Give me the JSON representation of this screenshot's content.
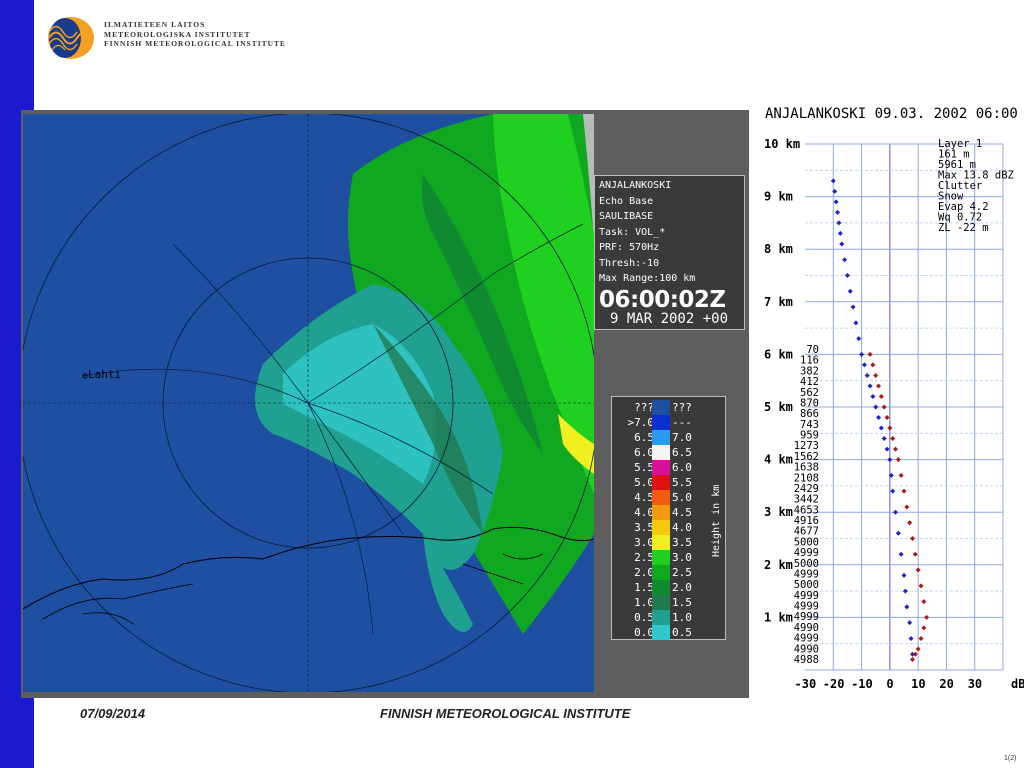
{
  "header": {
    "org_lines": [
      "ILMATIETEEN LAITOS",
      "METEOROLOGISKA INSTITUTET",
      "FINNISH METEOROLOGICAL INSTITUTE"
    ]
  },
  "radar": {
    "place_label": "Lahti",
    "info": {
      "station": "ANJALANKOSKI",
      "product": "Echo Base",
      "product_code": "SAULIBASE",
      "task": "Task: VOL_*",
      "prf": "PRF: 570Hz",
      "thresh": "Thresh:-10",
      "max_range": "Max Range:100 km",
      "time": "06:00:02Z",
      "date": "9 MAR 2002 +00"
    },
    "legend": {
      "axis_label": "Height in km",
      "rows": [
        {
          "left": "???",
          "right": "???",
          "color": "#1e4fa0"
        },
        {
          "left": ">7.0",
          "right": "---",
          "color": "#0a2fd0"
        },
        {
          "left": "6.5",
          "right": "7.0",
          "color": "#2a9bf0"
        },
        {
          "left": "6.0",
          "right": "6.5",
          "color": "#f4f4f4"
        },
        {
          "left": "5.5",
          "right": "6.0",
          "color": "#d8109a"
        },
        {
          "left": "5.0",
          "right": "5.5",
          "color": "#e01010"
        },
        {
          "left": "4.5",
          "right": "5.0",
          "color": "#f25a10"
        },
        {
          "left": "4.0",
          "right": "4.5",
          "color": "#f59a10"
        },
        {
          "left": "3.5",
          "right": "4.0",
          "color": "#f4c810"
        },
        {
          "left": "3.0",
          "right": "3.5",
          "color": "#f0f020"
        },
        {
          "left": "2.5",
          "right": "3.0",
          "color": "#20d020"
        },
        {
          "left": "2.0",
          "right": "2.5",
          "color": "#10a820"
        },
        {
          "left": "1.5",
          "right": "2.0",
          "color": "#108a30"
        },
        {
          "left": "1.0",
          "right": "1.5",
          "color": "#207a50"
        },
        {
          "left": "0.5",
          "right": "1.0",
          "color": "#20a090"
        },
        {
          "left": "0.0",
          "right": "0.5",
          "color": "#30c8c8"
        }
      ]
    }
  },
  "profile": {
    "title": "ANJALANKOSKI 09.03. 2002 06:00",
    "info_lines": [
      "Layer 1",
      "161 m",
      "5961 m",
      "Max 13.8 dBZ",
      "Clutter",
      "Snow",
      "Evap 4.2",
      "Wq 0.72",
      "ZL -22 m"
    ],
    "y_labels": [
      "10 km",
      "9 km",
      "8 km",
      "7 km",
      "6 km",
      "5 km",
      "4 km",
      "3 km",
      "2 km",
      "1 km"
    ],
    "x_labels": [
      "-30",
      "-20",
      "-10",
      "0",
      "10",
      "20",
      "30",
      "dBZ"
    ],
    "counts": [
      "70",
      "116",
      "382",
      "412",
      "562",
      "870",
      "866",
      "743",
      "959",
      "1273",
      "1562",
      "1638",
      "2108",
      "2429",
      "3442",
      "4653",
      "4916",
      "4677",
      "5000",
      "4999",
      "5000",
      "4999",
      "5000",
      "4999",
      "4999",
      "4999",
      "4990",
      "4999",
      "4990",
      "4988"
    ]
  },
  "chart_data": {
    "type": "scatter",
    "title": "ANJALANKOSKI 09.03. 2002 06:00",
    "xlabel": "dBZ",
    "ylabel": "",
    "xlim": [
      -30,
      40
    ],
    "ylim": [
      0,
      10
    ],
    "series": [
      {
        "color": "#2020d0",
        "x": [
          -20,
          -19.5,
          -19,
          -18.5,
          -18,
          -17.5,
          -17,
          -16,
          -15,
          -14,
          -13,
          -12,
          -11,
          -10,
          -9,
          -8,
          -7,
          -6,
          -5,
          -4,
          -3,
          -2,
          -1,
          0,
          0.5,
          1,
          2,
          3,
          4,
          5,
          5.5,
          6,
          7,
          7.5,
          8
        ],
        "y": [
          9.3,
          9.1,
          8.9,
          8.7,
          8.5,
          8.3,
          8.1,
          7.8,
          7.5,
          7.2,
          6.9,
          6.6,
          6.3,
          6.0,
          5.8,
          5.6,
          5.4,
          5.2,
          5.0,
          4.8,
          4.6,
          4.4,
          4.2,
          4.0,
          3.7,
          3.4,
          3.0,
          2.6,
          2.2,
          1.8,
          1.5,
          1.2,
          0.9,
          0.6,
          0.3
        ]
      },
      {
        "color": "#b01818",
        "x": [
          -7,
          -6,
          -5,
          -4,
          -3,
          -2,
          -1,
          0,
          1,
          2,
          3,
          4,
          5,
          6,
          7,
          8,
          9,
          10,
          11,
          12,
          13,
          12,
          11,
          10,
          9,
          8
        ],
        "y": [
          6.0,
          5.8,
          5.6,
          5.4,
          5.2,
          5.0,
          4.8,
          4.6,
          4.4,
          4.2,
          4.0,
          3.7,
          3.4,
          3.1,
          2.8,
          2.5,
          2.2,
          1.9,
          1.6,
          1.3,
          1.0,
          0.8,
          0.6,
          0.4,
          0.3,
          0.2
        ]
      }
    ]
  }
}
